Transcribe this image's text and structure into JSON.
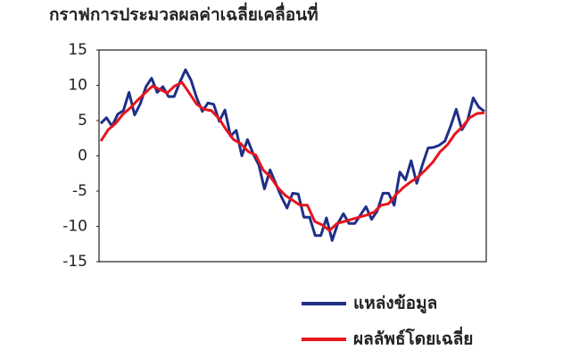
{
  "chart_data": {
    "type": "line",
    "title": "กราฟการประมวลผลค่าเฉลี่ยเคลื่อนที่",
    "ylim": [
      -15,
      15
    ],
    "yticks": [
      15,
      10,
      5,
      0,
      -5,
      -10,
      -15
    ],
    "series": [
      {
        "name": "แหล่งข้อมูล",
        "color": "#1f2f86",
        "values": [
          4.6,
          5.4,
          4.2,
          5.9,
          6.4,
          9.0,
          5.8,
          7.4,
          9.8,
          11,
          9,
          9.8,
          8.4,
          8.4,
          10.4,
          12.2,
          10.7,
          8.2,
          6.3,
          7.5,
          7.3,
          4.9,
          6.5,
          2.8,
          3.6,
          0,
          2.3,
          0.3,
          -1.3,
          -4.7,
          -2,
          -3.9,
          -5.8,
          -7.4,
          -5.3,
          -5.4,
          -8.7,
          -8.7,
          -11.3,
          -11.3,
          -8.8,
          -12,
          -9.6,
          -8.2,
          -9.6,
          -9.6,
          -8.4,
          -7.2,
          -9,
          -7.8,
          -5.3,
          -5.3,
          -7,
          -2.3,
          -3.4,
          -0.7,
          -3.9,
          -1.3,
          1.1,
          1.2,
          1.5,
          2.1,
          4.2,
          6.6,
          3.7,
          5,
          8.2,
          6.9,
          6.3
        ]
      },
      {
        "name": "ผลลัพธ์โดยเฉลี่ย",
        "color": "#e8141c",
        "values": [
          2.1,
          3.7,
          4.6,
          5.9,
          6.8,
          7.9,
          8.9,
          9.9,
          9.4,
          8.9,
          9.9,
          10.4,
          8.9,
          7.3,
          6.6,
          6.4,
          5.3,
          3.7,
          2.3,
          1.7,
          0.6,
          0.1,
          -2,
          -3,
          -4.5,
          -5.6,
          -6.3,
          -7,
          -7,
          -9.3,
          -9.8,
          -10.6,
          -9.6,
          -9.3,
          -9,
          -8.7,
          -8.4,
          -8,
          -7,
          -6.8,
          -5.5,
          -4.5,
          -3.7,
          -3,
          -2,
          -0.9,
          0.6,
          1.6,
          3.1,
          4.1,
          5.4,
          6,
          6.1
        ]
      }
    ]
  }
}
